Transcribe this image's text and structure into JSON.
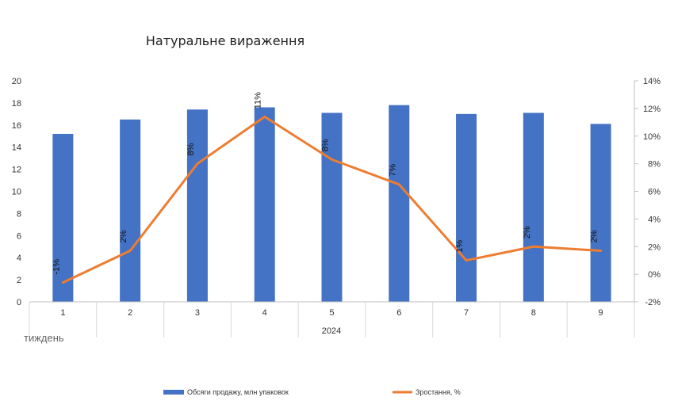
{
  "chart_data": {
    "type": "bar",
    "title": "Натуральне вираження",
    "categories": [
      "1",
      "2",
      "3",
      "4",
      "5",
      "6",
      "7",
      "8",
      "9"
    ],
    "group_label": "2024",
    "xlabel": "тиждень",
    "y_left": {
      "min": 0,
      "max": 20,
      "step": 2,
      "ticks": [
        "0",
        "2",
        "4",
        "6",
        "8",
        "10",
        "12",
        "14",
        "16",
        "18",
        "20"
      ]
    },
    "y_right": {
      "min": -2,
      "max": 14,
      "step": 2,
      "ticks": [
        "-2%",
        "0%",
        "2%",
        "4%",
        "6%",
        "8%",
        "10%",
        "12%",
        "14%"
      ]
    },
    "series": [
      {
        "name": "Обсяги продажу, млн упаковок",
        "type": "bar",
        "axis": "left",
        "color": "#4472C4",
        "values": [
          15.2,
          16.5,
          17.4,
          17.6,
          17.1,
          17.8,
          17.0,
          17.1,
          16.1
        ]
      },
      {
        "name": "Зростання, %",
        "type": "line",
        "axis": "right",
        "color": "#ED7D31",
        "values": [
          -0.6,
          1.7,
          8.0,
          11.4,
          8.3,
          6.5,
          1.0,
          2.0,
          1.7
        ],
        "labels": [
          "-1%",
          "2%",
          "8%",
          "11%",
          "8%",
          "7%",
          "1%",
          "2%",
          "2%"
        ]
      }
    ],
    "grid": false,
    "legend_position": "bottom"
  }
}
